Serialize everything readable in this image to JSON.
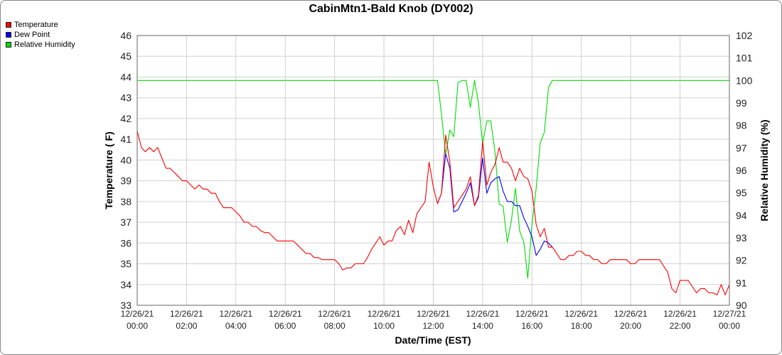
{
  "chart_data": {
    "type": "line",
    "title": "CabinMtn1-Bald Knob (DY002)",
    "xlabel": "Date/Time (EST)",
    "ylabel": "Temperature ( F)",
    "y2label": "Relative Humidity (%)",
    "ylim": [
      33,
      46
    ],
    "y2lim": [
      90,
      102
    ],
    "xlim": [
      0,
      24
    ],
    "yticks": [
      "33",
      "34",
      "35",
      "36",
      "37",
      "38",
      "39",
      "40",
      "41",
      "42",
      "43",
      "44",
      "45",
      "46"
    ],
    "y2ticks": [
      "90",
      "91",
      "92",
      "93",
      "94",
      "95",
      "96",
      "97",
      "98",
      "99",
      "100",
      "101",
      "102"
    ],
    "xticks": [
      {
        "date": "12/26/21",
        "time": "00:00"
      },
      {
        "date": "12/26/21",
        "time": "02:00"
      },
      {
        "date": "12/26/21",
        "time": "04:00"
      },
      {
        "date": "12/26/21",
        "time": "06:00"
      },
      {
        "date": "12/26/21",
        "time": "08:00"
      },
      {
        "date": "12/26/21",
        "time": "10:00"
      },
      {
        "date": "12/26/21",
        "time": "12:00"
      },
      {
        "date": "12/26/21",
        "time": "14:00"
      },
      {
        "date": "12/26/21",
        "time": "16:00"
      },
      {
        "date": "12/26/21",
        "time": "18:00"
      },
      {
        "date": "12/26/21",
        "time": "20:00"
      },
      {
        "date": "12/26/21",
        "time": "22:00"
      },
      {
        "date": "12/27/21",
        "time": "00:00"
      }
    ],
    "grid": true,
    "legend_position": "top-left",
    "series": [
      {
        "name": "Temperature",
        "color": "#ff0000",
        "axis": "left",
        "x": [
          0,
          0.17,
          0.33,
          0.5,
          0.67,
          0.83,
          1,
          1.17,
          1.33,
          1.5,
          1.67,
          1.83,
          2,
          2.17,
          2.33,
          2.5,
          2.67,
          2.83,
          3,
          3.17,
          3.33,
          3.5,
          3.67,
          3.83,
          4,
          4.17,
          4.33,
          4.5,
          4.67,
          4.83,
          5,
          5.17,
          5.33,
          5.5,
          5.67,
          5.83,
          6,
          6.17,
          6.33,
          6.5,
          6.67,
          6.83,
          7,
          7.17,
          7.33,
          7.5,
          7.67,
          7.83,
          8,
          8.17,
          8.33,
          8.5,
          8.67,
          8.83,
          9,
          9.17,
          9.33,
          9.5,
          9.67,
          9.83,
          10,
          10.17,
          10.33,
          10.5,
          10.67,
          10.83,
          11,
          11.17,
          11.33,
          11.5,
          11.67,
          11.83,
          12,
          12.17,
          12.33,
          12.5,
          12.67,
          12.83,
          13,
          13.17,
          13.33,
          13.5,
          13.67,
          13.83,
          14,
          14.17,
          14.33,
          14.5,
          14.67,
          14.83,
          15,
          15.17,
          15.33,
          15.5,
          15.67,
          15.83,
          16,
          16.17,
          16.33,
          16.5,
          16.67,
          16.83,
          17,
          17.17,
          17.33,
          17.5,
          17.67,
          17.83,
          18,
          18.17,
          18.33,
          18.5,
          18.67,
          18.83,
          19,
          19.17,
          19.33,
          19.5,
          19.67,
          19.83,
          20,
          20.17,
          20.33,
          20.5,
          20.67,
          20.83,
          21,
          21.17,
          21.33,
          21.5,
          21.67,
          21.83,
          22,
          22.17,
          22.33,
          22.5,
          22.67,
          22.83,
          23,
          23.17,
          23.33,
          23.5,
          23.67,
          23.83,
          24
        ],
        "values": [
          41.4,
          40.6,
          40.4,
          40.6,
          40.4,
          40.6,
          40.1,
          39.6,
          39.6,
          39.4,
          39.2,
          39.0,
          39.0,
          38.8,
          38.6,
          38.8,
          38.6,
          38.6,
          38.4,
          38.4,
          38.0,
          37.7,
          37.7,
          37.7,
          37.5,
          37.3,
          37.0,
          37.0,
          36.8,
          36.8,
          36.6,
          36.5,
          36.5,
          36.3,
          36.1,
          36.1,
          36.1,
          36.1,
          36.1,
          35.9,
          35.7,
          35.5,
          35.5,
          35.3,
          35.3,
          35.2,
          35.2,
          35.2,
          35.2,
          35.0,
          34.7,
          34.8,
          34.8,
          35.0,
          35.0,
          35.0,
          35.3,
          35.7,
          36.0,
          36.3,
          35.9,
          36.1,
          36.1,
          36.6,
          36.8,
          36.4,
          37.1,
          36.5,
          37.4,
          37.7,
          38.0,
          39.9,
          38.7,
          37.9,
          38.4,
          41.2,
          39.9,
          37.7,
          38.0,
          38.3,
          38.6,
          39.2,
          37.8,
          38.3,
          40.9,
          38.8,
          39.4,
          39.8,
          40.6,
          39.9,
          39.9,
          39.6,
          39.0,
          39.6,
          39.2,
          39.1,
          38.5,
          36.9,
          36.3,
          36.7,
          35.8,
          35.8,
          35.5,
          35.2,
          35.2,
          35.4,
          35.4,
          35.6,
          35.6,
          35.4,
          35.4,
          35.2,
          35.2,
          35.0,
          35.0,
          35.2,
          35.2,
          35.2,
          35.2,
          35.2,
          35.0,
          35.0,
          35.2,
          35.2,
          35.2,
          35.2,
          35.2,
          35.2,
          34.9,
          34.6,
          33.8,
          33.6,
          34.2,
          34.2,
          34.2,
          33.9,
          33.6,
          33.8,
          33.8,
          33.6,
          33.6,
          33.5,
          34.0,
          33.5,
          34.0
        ]
      },
      {
        "name": "Dew Point",
        "color": "#0000ff",
        "axis": "left",
        "x": [
          12.17,
          12.33,
          12.5,
          12.67,
          12.83,
          13,
          13.17,
          13.33,
          13.5,
          13.67,
          13.83,
          14,
          14.17,
          14.33,
          14.5,
          14.67,
          14.83,
          15,
          15.17,
          15.33,
          15.5,
          15.67,
          15.83,
          16,
          16.17,
          16.33,
          16.5,
          16.67,
          16.83
        ],
        "values": [
          37.9,
          38.4,
          40.3,
          39.6,
          37.5,
          37.6,
          38.0,
          38.4,
          38.9,
          37.8,
          38.2,
          40.1,
          38.4,
          38.9,
          39.1,
          39.2,
          38.5,
          38.0,
          38.0,
          37.8,
          37.8,
          37.2,
          36.8,
          36.3,
          35.4,
          35.7,
          36.1,
          36.0,
          35.8
        ]
      },
      {
        "name": "Relative Humidity",
        "color": "#00dd00",
        "axis": "right",
        "x": [
          0,
          12.17,
          12.33,
          12.5,
          12.67,
          12.83,
          13,
          13.17,
          13.33,
          13.5,
          13.67,
          13.83,
          14,
          14.17,
          14.33,
          14.5,
          14.67,
          14.83,
          15,
          15.17,
          15.33,
          15.5,
          15.67,
          15.83,
          16,
          16.17,
          16.33,
          16.5,
          16.67,
          16.83,
          17,
          24
        ],
        "values": [
          100,
          100,
          98.5,
          96.7,
          97.8,
          97.5,
          99.9,
          100,
          100,
          98.8,
          100,
          99,
          97.2,
          98.2,
          98.2,
          96.8,
          94.5,
          94.4,
          92.8,
          93.8,
          95.2,
          93.3,
          92.8,
          91.2,
          93.6,
          95.2,
          97.2,
          97.7,
          99.7,
          100,
          100,
          100
        ]
      }
    ]
  }
}
